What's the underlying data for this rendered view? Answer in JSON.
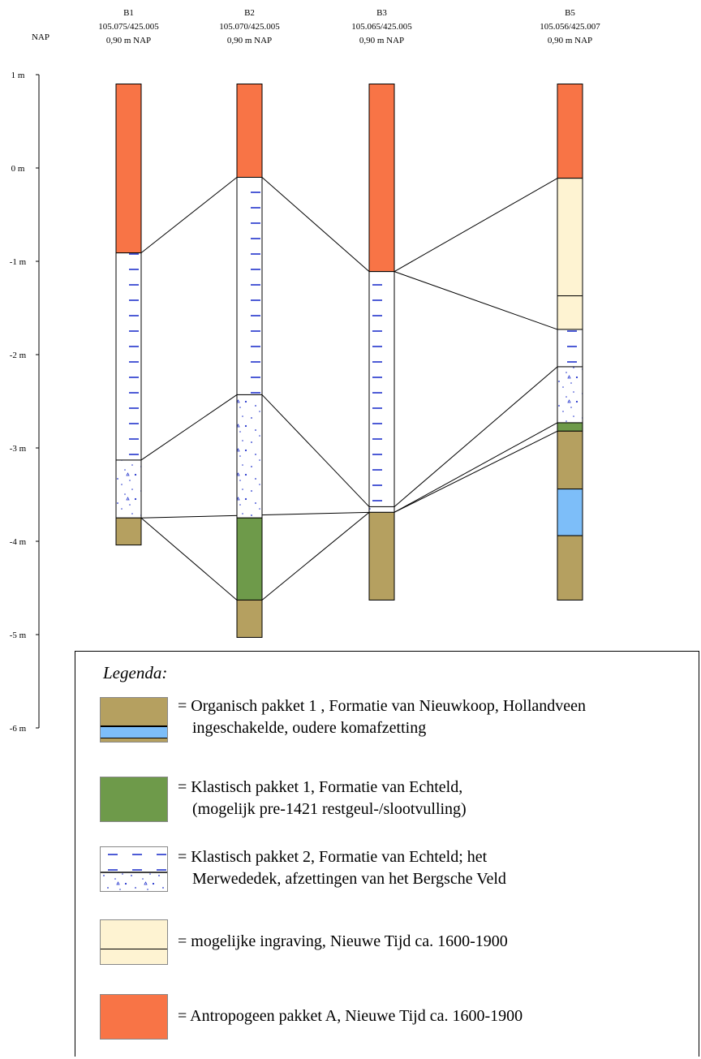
{
  "header": {
    "nap_label": "NAP"
  },
  "axis": {
    "ticks": [
      {
        "value": 1,
        "label": "1 m"
      },
      {
        "value": 0,
        "label": "0 m"
      },
      {
        "value": -1,
        "label": "-1 m"
      },
      {
        "value": -2,
        "label": "-2 m"
      },
      {
        "value": -3,
        "label": "-3 m"
      },
      {
        "value": -4,
        "label": "-4 m"
      },
      {
        "value": -5,
        "label": "-5 m"
      },
      {
        "value": -6,
        "label": "-6 m"
      }
    ]
  },
  "colors": {
    "antropogeen": "#F87446",
    "klastisch_1": "#6E9A4A",
    "organisch": "#B5A060",
    "komafzetting": "#7DBEF9",
    "ingraving": "#FEF3D2",
    "klastisch_2_fill": "#FFFFFF",
    "klastisch_2_mark": "#2233CC"
  },
  "boreholes": [
    {
      "id": "B1",
      "coords": "105.075/425.005",
      "surface": "0,90 m NAP",
      "layers": [
        {
          "top": 0.9,
          "bottom": -0.91,
          "type": "antropogeen"
        },
        {
          "top": -0.91,
          "bottom": -3.13,
          "type": "klastisch_2_dash"
        },
        {
          "top": -3.13,
          "bottom": -3.75,
          "type": "klastisch_2_dot"
        },
        {
          "top": -3.75,
          "bottom": -4.04,
          "type": "organisch"
        }
      ]
    },
    {
      "id": "B2",
      "coords": "105.070/425.005",
      "surface": "0,90 m NAP",
      "layers": [
        {
          "top": 0.9,
          "bottom": -0.1,
          "type": "antropogeen"
        },
        {
          "top": -0.1,
          "bottom": -2.43,
          "type": "klastisch_2_dash"
        },
        {
          "top": -2.43,
          "bottom": -3.75,
          "type": "klastisch_2_dot"
        },
        {
          "top": -3.75,
          "bottom": -4.63,
          "type": "klastisch_1"
        },
        {
          "top": -4.63,
          "bottom": -5.03,
          "type": "organisch"
        }
      ]
    },
    {
      "id": "B3",
      "coords": "105.065/425.005",
      "surface": "0,90 m NAP",
      "layers": [
        {
          "top": 0.9,
          "bottom": -1.11,
          "type": "antropogeen"
        },
        {
          "top": -1.11,
          "bottom": -3.63,
          "type": "klastisch_2_dash"
        },
        {
          "top": -3.63,
          "bottom": -3.69,
          "type": "klastisch_2_dot"
        },
        {
          "top": -3.69,
          "bottom": -4.63,
          "type": "organisch"
        }
      ]
    },
    {
      "id": "B5",
      "coords": "105.056/425.007",
      "surface": "0,90 m NAP",
      "layers": [
        {
          "top": 0.9,
          "bottom": -0.11,
          "type": "antropogeen"
        },
        {
          "top": -0.11,
          "bottom": -1.37,
          "type": "ingraving"
        },
        {
          "top": -1.37,
          "bottom": -1.73,
          "type": "ingraving"
        },
        {
          "top": -1.73,
          "bottom": -2.13,
          "type": "klastisch_2_dash"
        },
        {
          "top": -2.13,
          "bottom": -2.73,
          "type": "klastisch_2_dot"
        },
        {
          "top": -2.73,
          "bottom": -2.82,
          "type": "klastisch_1"
        },
        {
          "top": -2.82,
          "bottom": -3.44,
          "type": "organisch"
        },
        {
          "top": -3.44,
          "bottom": -3.94,
          "type": "komafzetting"
        },
        {
          "top": -3.94,
          "bottom": -4.63,
          "type": "organisch"
        }
      ]
    }
  ],
  "correlations": [
    {
      "from": "B1",
      "from_depth": -0.91,
      "to": "B2",
      "to_depth": -0.1
    },
    {
      "from": "B2",
      "from_depth": -0.1,
      "to": "B3",
      "to_depth": -1.11
    },
    {
      "from": "B3",
      "from_depth": -1.11,
      "to": "B5",
      "to_depth": -0.11
    },
    {
      "from": "B3",
      "from_depth": -1.11,
      "to": "B5",
      "to_depth": -1.73
    },
    {
      "from": "B1",
      "from_depth": -3.13,
      "to": "B2",
      "to_depth": -2.43
    },
    {
      "from": "B2",
      "from_depth": -2.43,
      "to": "B3",
      "to_depth": -3.63
    },
    {
      "from": "B3",
      "from_depth": -3.63,
      "to": "B5",
      "to_depth": -2.13
    },
    {
      "from": "B1",
      "from_depth": -3.75,
      "to": "B3",
      "to_depth": -3.69
    },
    {
      "from": "B1",
      "from_depth": -3.75,
      "to": "B2",
      "to_depth": -4.63
    },
    {
      "from": "B2",
      "from_depth": -4.63,
      "to": "B3",
      "to_depth": -3.69
    },
    {
      "from": "B3",
      "from_depth": -3.69,
      "to": "B5",
      "to_depth": -2.73
    },
    {
      "from": "B3",
      "from_depth": -3.69,
      "to": "B5",
      "to_depth": -2.82
    }
  ],
  "legend": {
    "title": "Legenda:",
    "items": [
      {
        "swatch": "organisch-komafzetting",
        "line1": "= Organisch pakket 1 , Formatie van Nieuwkoop, Hollandveen",
        "line2": "ingeschakelde, oudere komafzetting"
      },
      {
        "swatch": "klastisch_1",
        "line1": "= Klastisch pakket 1, Formatie van Echteld,",
        "line2": "(mogelijk pre-1421 restgeul-/slootvulling)"
      },
      {
        "swatch": "klastisch_2",
        "line1": "= Klastisch pakket 2, Formatie van Echteld; het",
        "line2": "Merwededek, afzettingen van het Bergsche Veld"
      },
      {
        "swatch": "ingraving",
        "line1": "= mogelijke ingraving, Nieuwe Tijd ca. 1600-1900",
        "line2": ""
      },
      {
        "swatch": "antropogeen",
        "line1": "= Antropogeen pakket A, Nieuwe Tijd ca. 1600-1900",
        "line2": ""
      }
    ]
  }
}
